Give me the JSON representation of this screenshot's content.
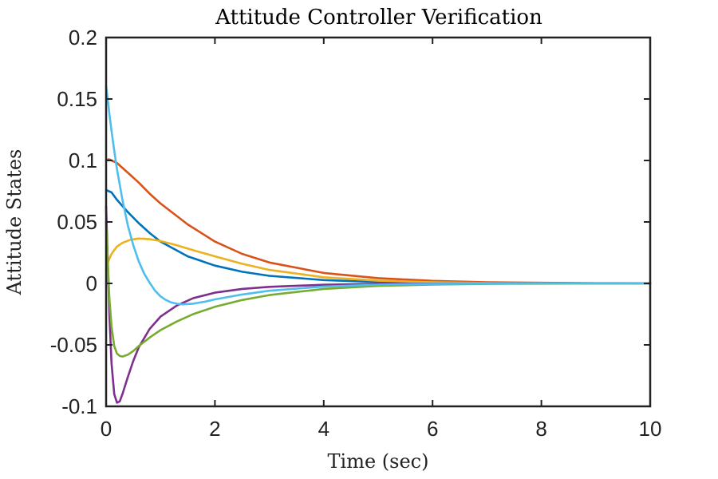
{
  "chart_data": {
    "type": "line",
    "title": "Attitude Controller Verification",
    "xlabel": "Time (sec)",
    "ylabel": "Attitude States",
    "xlim": [
      0,
      10
    ],
    "ylim": [
      -0.1,
      0.2
    ],
    "xticks": [
      0,
      2,
      4,
      6,
      8,
      10
    ],
    "xtick_labels": [
      "0",
      "2",
      "4",
      "6",
      "8",
      "10"
    ],
    "yticks": [
      -0.1,
      -0.05,
      0,
      0.05,
      0.1,
      0.15,
      0.2
    ],
    "ytick_labels": [
      "-0.1",
      "-0.05",
      "0",
      "0.05",
      "0.1",
      "0.15",
      "0.2"
    ],
    "grid": false,
    "legend": "none",
    "series": [
      {
        "color": "#0072BD",
        "x": [
          0,
          0.1,
          0.2,
          0.4,
          0.6,
          0.8,
          1.0,
          1.5,
          2,
          2.5,
          3,
          4,
          5,
          6,
          7,
          8,
          9,
          10
        ],
        "y": [
          0.076,
          0.074,
          0.068,
          0.058,
          0.049,
          0.041,
          0.034,
          0.022,
          0.0145,
          0.0095,
          0.0062,
          0.0027,
          0.0011,
          0.0005,
          0.0002,
          0.0001,
          0.0,
          0.0
        ]
      },
      {
        "color": "#D95319",
        "x": [
          0,
          0.05,
          0.1,
          0.2,
          0.4,
          0.6,
          0.8,
          1.0,
          1.5,
          2,
          2.5,
          3,
          4,
          5,
          6,
          7,
          8,
          9,
          10
        ],
        "y": [
          0.1,
          0.101,
          0.1,
          0.098,
          0.09,
          0.082,
          0.073,
          0.065,
          0.048,
          0.034,
          0.024,
          0.017,
          0.0085,
          0.0043,
          0.0021,
          0.001,
          0.0005,
          0.0002,
          0.0001
        ]
      },
      {
        "color": "#EDB120",
        "x": [
          0,
          0.05,
          0.1,
          0.2,
          0.3,
          0.45,
          0.6,
          0.8,
          1.0,
          1.3,
          1.6,
          2,
          2.5,
          3,
          4,
          5,
          6,
          7,
          8,
          10
        ],
        "y": [
          0.012,
          0.019,
          0.024,
          0.03,
          0.033,
          0.0355,
          0.0365,
          0.036,
          0.0345,
          0.031,
          0.027,
          0.022,
          0.016,
          0.011,
          0.005,
          0.0022,
          0.001,
          0.0004,
          0.0002,
          0.0
        ]
      },
      {
        "color": "#7E2F8E",
        "x": [
          0,
          0.03,
          0.06,
          0.1,
          0.15,
          0.2,
          0.25,
          0.3,
          0.4,
          0.5,
          0.6,
          0.8,
          1.0,
          1.3,
          1.6,
          2,
          2.5,
          3,
          4,
          5,
          6,
          8,
          10
        ],
        "y": [
          0.063,
          0.02,
          -0.025,
          -0.065,
          -0.09,
          -0.097,
          -0.096,
          -0.09,
          -0.076,
          -0.063,
          -0.052,
          -0.037,
          -0.027,
          -0.018,
          -0.012,
          -0.0075,
          -0.0045,
          -0.0028,
          -0.0011,
          -0.0004,
          -0.0002,
          0.0,
          0.0
        ]
      },
      {
        "color": "#77AC30",
        "x": [
          0,
          0.03,
          0.06,
          0.1,
          0.15,
          0.2,
          0.25,
          0.3,
          0.4,
          0.5,
          0.6,
          0.8,
          1.0,
          1.3,
          1.6,
          2,
          2.5,
          3,
          4,
          5,
          6,
          7,
          8,
          10
        ],
        "y": [
          0.05,
          0.02,
          -0.012,
          -0.035,
          -0.051,
          -0.057,
          -0.059,
          -0.0595,
          -0.058,
          -0.055,
          -0.051,
          -0.044,
          -0.038,
          -0.031,
          -0.025,
          -0.019,
          -0.0135,
          -0.0095,
          -0.0045,
          -0.002,
          -0.001,
          -0.0004,
          -0.0002,
          0.0
        ]
      },
      {
        "color": "#4DBEEE",
        "x": [
          0,
          0.03,
          0.06,
          0.1,
          0.15,
          0.2,
          0.3,
          0.4,
          0.5,
          0.6,
          0.7,
          0.8,
          0.9,
          1.0,
          1.1,
          1.2,
          1.3,
          1.4,
          1.6,
          1.8,
          2,
          2.5,
          3,
          4,
          5,
          6,
          8,
          10
        ],
        "y": [
          0.16,
          0.15,
          0.138,
          0.124,
          0.108,
          0.093,
          0.068,
          0.047,
          0.031,
          0.018,
          0.008,
          0.0005,
          -0.006,
          -0.0105,
          -0.0135,
          -0.0155,
          -0.0165,
          -0.017,
          -0.0165,
          -0.015,
          -0.013,
          -0.009,
          -0.006,
          -0.0025,
          -0.001,
          -0.0004,
          0.0,
          0.0
        ]
      }
    ]
  }
}
